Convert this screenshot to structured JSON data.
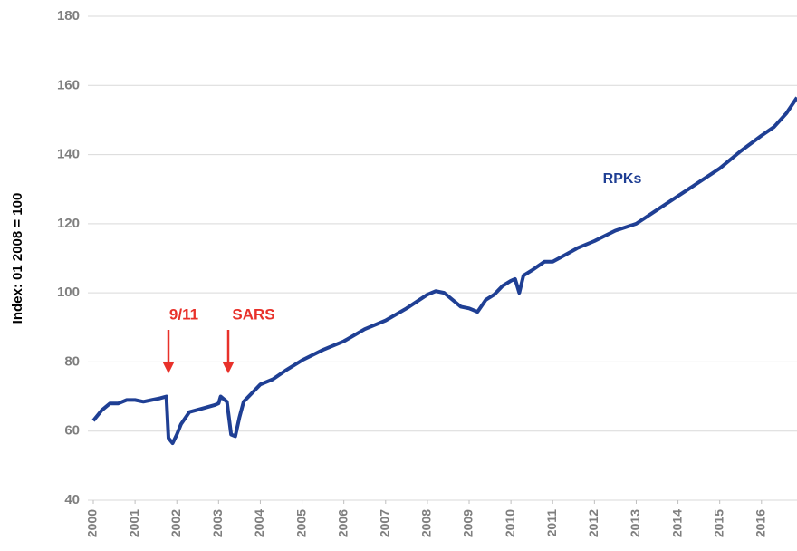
{
  "chart_data": {
    "type": "line",
    "y_label": "Index: 01 2008 = 100",
    "annotations": [
      "9/11",
      "SARS"
    ],
    "annotation_color": "#e8312a",
    "series": [
      {
        "name": "RPKs",
        "color": "#1f3f94",
        "x": [
          2000.0,
          2000.2,
          2000.4,
          2000.6,
          2000.8,
          2001.0,
          2001.2,
          2001.4,
          2001.6,
          2001.75,
          2001.8,
          2001.9,
          2002.0,
          2002.1,
          2002.3,
          2002.6,
          2002.9,
          2003.0,
          2003.05,
          2003.2,
          2003.3,
          2003.4,
          2003.5,
          2003.6,
          2003.8,
          2004.0,
          2004.3,
          2004.6,
          2005.0,
          2005.5,
          2006.0,
          2006.5,
          2007.0,
          2007.5,
          2008.0,
          2008.2,
          2008.4,
          2008.6,
          2008.8,
          2009.0,
          2009.1,
          2009.2,
          2009.4,
          2009.6,
          2009.8,
          2010.0,
          2010.1,
          2010.2,
          2010.3,
          2010.5,
          2010.8,
          2011.0,
          2011.3,
          2011.6,
          2012.0,
          2012.5,
          2013.0,
          2013.5,
          2014.0,
          2014.5,
          2015.0,
          2015.5,
          2016.0,
          2016.3,
          2016.6,
          2016.85
        ],
        "values": [
          63,
          66,
          68,
          68,
          69,
          69,
          68.5,
          69,
          69.5,
          70,
          58,
          56.5,
          59,
          62,
          65.5,
          66.5,
          67.5,
          68,
          70,
          68.5,
          59,
          58.5,
          64,
          68.5,
          71,
          73.5,
          75,
          77.5,
          80.5,
          83.5,
          86,
          89.5,
          92,
          95.5,
          99.5,
          100.5,
          100,
          98,
          96,
          95.5,
          95,
          94.5,
          98,
          99.5,
          102,
          103.5,
          104,
          100,
          105,
          106.5,
          109,
          109,
          111,
          113,
          115,
          118,
          120,
          124,
          128,
          132,
          136,
          141,
          145.5,
          148,
          152,
          156.5
        ]
      }
    ],
    "xlim": [
      2000,
      2016.85
    ],
    "xticks": [
      2000,
      2001,
      2002,
      2003,
      2004,
      2005,
      2006,
      2007,
      2008,
      2009,
      2010,
      2011,
      2012,
      2013,
      2014,
      2015,
      2016
    ],
    "ylim": [
      40,
      180
    ],
    "yticks": [
      40,
      60,
      80,
      100,
      120,
      140,
      160,
      180
    ],
    "grid": true
  }
}
